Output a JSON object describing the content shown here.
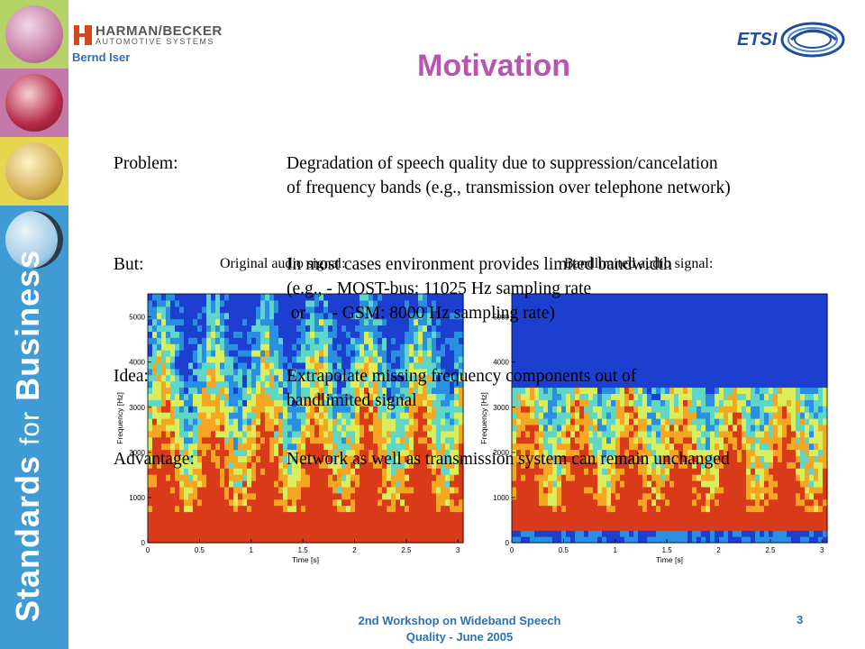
{
  "header": {
    "company_main": "HARMAN/BECKER",
    "company_sub": "AUTOMOTIVE SYSTEMS",
    "author": "Bernd Iser",
    "partner_logo": "ETSI"
  },
  "sidebar": {
    "brand_text_bold_1": "Standards",
    "brand_text_small": "for",
    "brand_text_bold_2": "Business"
  },
  "slide": {
    "title": "Motivation",
    "items": [
      {
        "key": "Problem:",
        "lines": [
          "Degradation of speech quality due to suppression/cancelation",
          "of frequency bands (e.g., transmission over telephone network)"
        ]
      },
      {
        "key": "But:",
        "lines": [
          "In most cases environment provides limited bandwidth",
          "(e.g., - MOST-bus: 11025 Hz sampling rate",
          " or      - GSM: 8000 Hz sampling rate)"
        ]
      },
      {
        "key": "Idea:",
        "lines": [
          "Extrapolate missing frequency components out of",
          "bandlimited signal"
        ]
      },
      {
        "key": "Advantage:",
        "lines": [
          "Network as well as transmission system can remain unchanged"
        ]
      }
    ]
  },
  "figures": [
    {
      "label": "Original audio signal:",
      "xlabel": "Time [s]",
      "ylabel": "Frequency [Hz]",
      "xticks": [
        "0",
        "0.5",
        "1",
        "1.5",
        "2",
        "2.5",
        "3"
      ],
      "yticks": [
        "0",
        "1000",
        "2000",
        "3000",
        "4000",
        "5000"
      ],
      "bandlimited": false
    },
    {
      "label": "Bandlimited audio signal:",
      "xlabel": "Time [s]",
      "ylabel": "Frequency [Hz]",
      "xticks": [
        "0",
        "0.5",
        "1",
        "1.5",
        "2",
        "2.5",
        "3"
      ],
      "yticks": [
        "0",
        "1000",
        "2000",
        "3000",
        "4000",
        "5000"
      ],
      "bandlimited": true
    }
  ],
  "footer": {
    "line1": "2nd Workshop on Wideband Speech",
    "line2": "Quality  - June 2005",
    "page": "3"
  }
}
